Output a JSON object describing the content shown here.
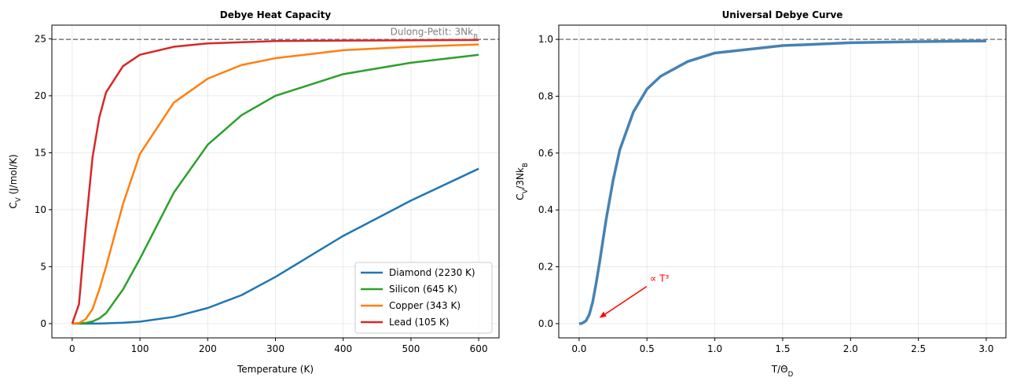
{
  "chart_data": [
    {
      "type": "line",
      "title": "Debye Heat Capacity",
      "xlabel": [
        {
          "t": "Temperature (K)"
        }
      ],
      "ylabel": [
        {
          "t": "C"
        },
        {
          "sub": "V"
        },
        {
          "t": " (J/mol/K)"
        }
      ],
      "x": [
        0,
        10,
        20,
        30,
        40,
        50,
        75,
        100,
        150,
        200,
        250,
        300,
        400,
        500,
        600
      ],
      "series": [
        {
          "name": "Diamond (2230 K)",
          "color": "#1f77b4",
          "values": [
            0,
            0.0002,
            0.0014,
            0.0047,
            0.011,
            0.022,
            0.074,
            0.17,
            0.59,
            1.37,
            2.5,
            4.1,
            7.7,
            10.8,
            13.6
          ]
        },
        {
          "name": "Silicon (645 K)",
          "color": "#2ca02c",
          "values": [
            0,
            0.007,
            0.06,
            0.19,
            0.46,
            0.92,
            3.0,
            5.7,
            11.5,
            15.7,
            18.3,
            20.0,
            21.9,
            22.9,
            23.6
          ]
        },
        {
          "name": "Copper (343 K)",
          "color": "#ff7f0e",
          "values": [
            0,
            0.05,
            0.39,
            1.27,
            3.0,
            5.0,
            10.5,
            14.9,
            19.4,
            21.5,
            22.7,
            23.3,
            24.0,
            24.3,
            24.5
          ]
        },
        {
          "name": "Lead (105 K)",
          "color": "#d62728",
          "values": [
            0,
            1.7,
            8.5,
            14.6,
            18.1,
            20.3,
            22.6,
            23.6,
            24.3,
            24.6,
            24.7,
            24.8,
            24.85,
            24.87,
            24.9
          ]
        }
      ],
      "xlim": [
        -30,
        630
      ],
      "ylim": [
        -1.25,
        26.2
      ],
      "xticks": [
        0,
        100,
        200,
        300,
        400,
        500,
        600
      ],
      "yticks": [
        0,
        5,
        10,
        15,
        20,
        25
      ],
      "grid": true,
      "legend": "lower right",
      "hline": {
        "y": 24.94,
        "color": "#808080",
        "label": [
          {
            "t": "Dulong-Petit: 3Nk"
          },
          {
            "sub": "B"
          }
        ]
      }
    },
    {
      "type": "line",
      "title": "Universal Debye Curve",
      "xlabel": [
        {
          "t": "T/Θ"
        },
        {
          "sub": "D"
        }
      ],
      "ylabel": [
        {
          "t": "C"
        },
        {
          "sub": "V"
        },
        {
          "t": "/3Nk"
        },
        {
          "sub": "B"
        }
      ],
      "x": [
        0,
        0.02,
        0.05,
        0.075,
        0.1,
        0.125,
        0.15,
        0.2,
        0.25,
        0.3,
        0.4,
        0.5,
        0.6,
        0.8,
        1.0,
        1.5,
        2.0,
        2.5,
        3.0
      ],
      "series": [
        {
          "color": "#4682b4",
          "values": [
            0,
            0.0006,
            0.0097,
            0.032,
            0.076,
            0.141,
            0.213,
            0.369,
            0.503,
            0.612,
            0.745,
            0.825,
            0.87,
            0.922,
            0.952,
            0.978,
            0.988,
            0.992,
            0.9945
          ]
        }
      ],
      "xlim": [
        -0.15,
        3.145
      ],
      "ylim": [
        -0.05,
        1.05
      ],
      "xticks": [
        {
          "value": 0,
          "label": "0.0"
        },
        {
          "value": 0.5,
          "label": "0.5"
        },
        {
          "value": 1,
          "label": "1.0"
        },
        {
          "value": 1.5,
          "label": "1.5"
        },
        {
          "value": 2,
          "label": "2.0"
        },
        {
          "value": 2.5,
          "label": "2.5"
        },
        {
          "value": 3,
          "label": "3.0"
        }
      ],
      "yticks": [
        {
          "value": 0,
          "label": "0.0"
        },
        {
          "value": 0.2,
          "label": "0.2"
        },
        {
          "value": 0.4,
          "label": "0.4"
        },
        {
          "value": 0.6,
          "label": "0.6"
        },
        {
          "value": 0.8,
          "label": "0.8"
        },
        {
          "value": 1,
          "label": "1.0"
        }
      ],
      "grid": true,
      "hline": {
        "y": 1,
        "color": "#808080"
      },
      "annotation": {
        "text": "∝ T³",
        "xy": [
          0.15,
          0.02
        ],
        "color": "#ff0000"
      }
    }
  ]
}
